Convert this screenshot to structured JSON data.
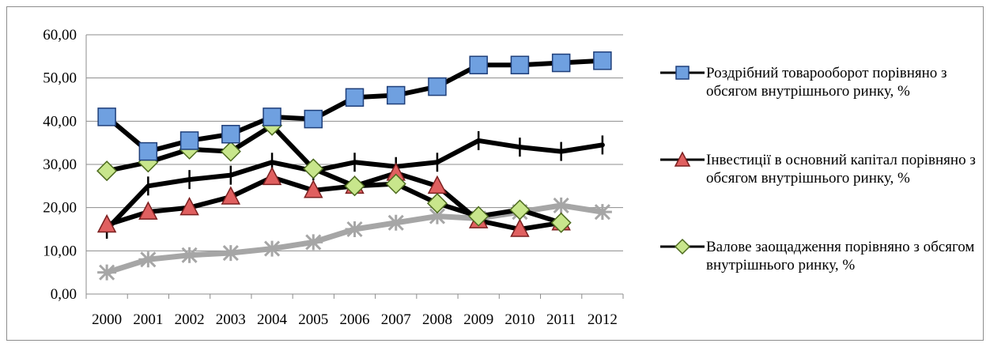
{
  "chart_data": {
    "type": "line",
    "title": "",
    "xlabel": "",
    "ylabel": "",
    "categories": [
      "2000",
      "2001",
      "2002",
      "2003",
      "2004",
      "2005",
      "2006",
      "2007",
      "2008",
      "2009",
      "2010",
      "2011",
      "2012"
    ],
    "y_tick_labels": [
      "0,00",
      "10,00",
      "20,00",
      "30,00",
      "40,00",
      "50,00",
      "60,00"
    ],
    "ylim": [
      0,
      60
    ],
    "grid": "horizontal",
    "legend_position": "right",
    "series": [
      {
        "name": "Роздрібний товарооборот порівняно з обсягом внутрішнього ринку, %",
        "values": [
          41.0,
          33.0,
          35.5,
          37.0,
          41.0,
          40.5,
          45.5,
          46.0,
          48.0,
          53.0,
          53.0,
          53.5,
          54.0
        ],
        "line_color": "#000000",
        "marker": "square",
        "marker_color": "#6fa0e0"
      },
      {
        "name": "Інвестиції в основний капітал порівняно з обсягом внутрішнього ринку, %",
        "values": [
          16.0,
          19.0,
          20.0,
          22.5,
          27.0,
          24.0,
          25.0,
          28.0,
          25.0,
          17.0,
          15.0,
          16.5,
          null
        ],
        "line_color": "#000000",
        "marker": "triangle",
        "marker_color": "#e06060"
      },
      {
        "name": "Валове заощадження порівняно з обсягом внутрішнього ринку, %",
        "values": [
          28.5,
          30.5,
          33.5,
          33.0,
          39.0,
          29.0,
          25.0,
          25.5,
          21.0,
          18.0,
          19.5,
          16.5,
          null
        ],
        "line_color": "#000000",
        "marker": "diamond",
        "marker_color": "#c8e68c"
      },
      {
        "name": "",
        "values": [
          15.0,
          25.0,
          26.5,
          27.5,
          30.5,
          28.5,
          30.5,
          29.5,
          30.5,
          35.5,
          34.0,
          33.0,
          34.5
        ],
        "line_color": "#000000",
        "marker": "plus",
        "marker_color": "#000000"
      },
      {
        "name": "",
        "values": [
          5.0,
          8.0,
          9.0,
          9.5,
          10.5,
          12.0,
          15.0,
          16.5,
          18.0,
          17.5,
          19.0,
          20.5,
          19.0
        ],
        "line_color": "#a6a6a6",
        "marker": "star",
        "marker_color": "#a6a6a6"
      }
    ]
  }
}
